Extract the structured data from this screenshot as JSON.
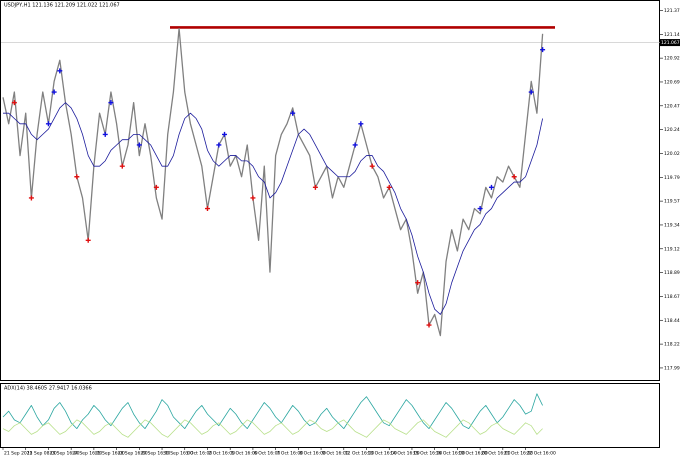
{
  "chart_data": [
    {
      "type": "line",
      "title": "USDJPY,H1 121.136 121.209 121.022 121.067",
      "categories": [
        "21 Sep 2015",
        null,
        null,
        null,
        "22 Sep 08:00",
        null,
        null,
        null,
        "23 Sep 16:00",
        null,
        null,
        null,
        "24 Sep 16:00",
        null,
        null,
        null,
        "25 Sep 16:00",
        null,
        null,
        null,
        "28 Sep 16:00",
        null,
        null,
        null,
        "29 Sep 16:00",
        null,
        null,
        null,
        "30 Sep 16:00",
        null,
        null,
        null,
        "1 Oct 16:00",
        null,
        null,
        null,
        "2 Oct 16:00",
        null,
        null,
        null,
        "5 Oct 16:00",
        null,
        null,
        null,
        "6 Oct 16:00",
        null,
        null,
        null,
        "7 Oct 16:00",
        null,
        null,
        null,
        "8 Oct 16:00",
        null,
        null,
        null,
        "9 Oct 16:00",
        null,
        null,
        null,
        "12 Oct 16:00",
        null,
        null,
        null,
        "13 Oct 16:00",
        null,
        null,
        null,
        "14 Oct 16:00",
        null,
        null,
        null,
        "15 Oct 16:00",
        null,
        null,
        null,
        "16 Oct 16:00",
        null,
        null,
        null,
        "19 Oct 16:00",
        null,
        null,
        null,
        "20 Oct 16:00",
        null,
        null,
        null,
        "21 Oct 16:00",
        null,
        null,
        null,
        "22 Oct 16:00",
        null,
        null,
        null
      ],
      "series": [
        {
          "color": "#808080",
          "values": [
            120.55,
            120.3,
            120.6,
            120.0,
            120.4,
            119.6,
            120.2,
            120.6,
            120.3,
            120.7,
            120.9,
            120.5,
            120.2,
            119.8,
            119.6,
            119.2,
            119.9,
            120.4,
            120.2,
            120.6,
            120.3,
            119.9,
            120.1,
            120.5,
            120.0,
            120.3,
            120.0,
            119.6,
            119.4,
            120.2,
            120.6,
            121.2,
            120.6,
            120.3,
            120.1,
            119.9,
            119.5,
            119.8,
            120.1,
            120.2,
            119.9,
            120.0,
            119.8,
            120.1,
            119.6,
            119.2,
            119.9,
            118.9,
            120.0,
            120.2,
            120.3,
            120.45,
            120.2,
            120.1,
            120.0,
            119.7,
            119.8,
            119.9,
            119.6,
            119.8,
            119.7,
            119.9,
            120.1,
            120.3,
            120.1,
            119.9,
            119.8,
            119.6,
            119.7,
            119.5,
            119.3,
            119.4,
            119.1,
            118.7,
            118.9,
            118.4,
            118.5,
            118.3,
            119.0,
            119.3,
            119.1,
            119.4,
            119.3,
            119.5,
            119.45,
            119.7,
            119.6,
            119.8,
            119.75,
            119.9,
            119.8,
            119.7,
            120.2,
            120.7,
            120.4,
            121.15
          ]
        },
        {
          "color": "#1c1c9c",
          "values": [
            120.4,
            120.4,
            120.35,
            120.3,
            120.3,
            120.2,
            120.15,
            120.2,
            120.25,
            120.35,
            120.45,
            120.5,
            120.45,
            120.35,
            120.2,
            120.0,
            119.9,
            119.9,
            119.95,
            120.05,
            120.1,
            120.15,
            120.15,
            120.2,
            120.2,
            120.15,
            120.1,
            120.0,
            119.9,
            119.9,
            120.0,
            120.2,
            120.35,
            120.4,
            120.35,
            120.25,
            120.05,
            119.95,
            119.9,
            119.95,
            120.0,
            120.0,
            119.95,
            119.95,
            119.9,
            119.8,
            119.75,
            119.6,
            119.65,
            119.75,
            119.9,
            120.05,
            120.2,
            120.25,
            120.2,
            120.1,
            120.0,
            119.9,
            119.85,
            119.8,
            119.8,
            119.8,
            119.85,
            119.95,
            120.0,
            120.0,
            119.9,
            119.85,
            119.75,
            119.65,
            119.5,
            119.4,
            119.25,
            119.05,
            118.9,
            118.7,
            118.55,
            118.5,
            118.6,
            118.8,
            118.95,
            119.1,
            119.2,
            119.3,
            119.35,
            119.45,
            119.5,
            119.6,
            119.65,
            119.7,
            119.75,
            119.75,
            119.8,
            119.95,
            120.1,
            120.35
          ]
        }
      ],
      "markers": [
        {
          "color": "#e01010",
          "values": [
            null,
            null,
            120.5,
            null,
            null,
            119.6,
            null,
            null,
            null,
            null,
            null,
            null,
            null,
            119.8,
            null,
            119.2,
            null,
            null,
            null,
            null,
            null,
            119.9,
            null,
            null,
            null,
            null,
            null,
            119.7,
            null,
            null,
            null,
            null,
            null,
            null,
            null,
            null,
            119.5,
            null,
            null,
            null,
            null,
            null,
            null,
            null,
            119.6,
            null,
            null,
            null,
            null,
            null,
            null,
            null,
            null,
            null,
            null,
            119.7,
            null,
            null,
            null,
            null,
            null,
            null,
            null,
            null,
            null,
            119.9,
            null,
            null,
            119.7,
            null,
            null,
            null,
            null,
            118.8,
            null,
            118.4,
            null,
            null,
            null,
            null,
            null,
            null,
            null,
            null,
            null,
            null,
            null,
            null,
            null,
            null,
            119.8,
            null,
            null,
            null,
            null,
            null
          ]
        },
        {
          "color": "#1010e0",
          "values": [
            null,
            null,
            null,
            null,
            null,
            null,
            null,
            null,
            120.3,
            120.6,
            120.8,
            null,
            null,
            null,
            null,
            null,
            null,
            null,
            120.2,
            120.5,
            null,
            null,
            null,
            null,
            120.1,
            null,
            null,
            null,
            null,
            null,
            null,
            null,
            null,
            null,
            null,
            null,
            null,
            null,
            120.1,
            120.2,
            null,
            null,
            null,
            null,
            null,
            null,
            null,
            null,
            null,
            null,
            null,
            120.4,
            null,
            null,
            null,
            null,
            null,
            null,
            null,
            null,
            null,
            null,
            120.1,
            120.3,
            null,
            null,
            null,
            null,
            null,
            null,
            null,
            null,
            null,
            null,
            null,
            null,
            null,
            null,
            null,
            null,
            null,
            null,
            null,
            null,
            119.5,
            null,
            119.7,
            null,
            null,
            null,
            null,
            null,
            null,
            120.6,
            null,
            121.0
          ]
        }
      ],
      "level": {
        "value": 121.21,
        "color": "#b00000"
      },
      "current": 121.067,
      "ylim": [
        117.9,
        121.45
      ],
      "yticks": [
        117.995,
        {
          "value": 118.22,
          "label": "118.220"
        },
        118.445,
        {
          "value": 118.67,
          "label": "118.670"
        },
        118.895,
        {
          "value": 119.12,
          "label": "119.120"
        },
        119.345,
        {
          "value": 119.57,
          "label": "119.570"
        },
        119.795,
        {
          "value": 120.02,
          "label": "120.020"
        },
        120.245,
        {
          "value": 120.47,
          "label": "120.470"
        },
        120.695,
        {
          "value": 120.92,
          "label": "120.920"
        },
        121.145,
        {
          "value": 121.37,
          "label": "121.370"
        }
      ]
    },
    {
      "type": "line",
      "title": "ADX(14) 38.4605 27.9417 16.0366",
      "ylim": [
        0,
        100
      ],
      "series": [
        {
          "color": "#2aa6a0",
          "values": [
            50,
            60,
            45,
            40,
            55,
            70,
            50,
            35,
            45,
            65,
            75,
            60,
            40,
            30,
            45,
            55,
            70,
            60,
            45,
            35,
            50,
            65,
            75,
            55,
            40,
            30,
            45,
            60,
            80,
            70,
            50,
            40,
            30,
            45,
            60,
            70,
            55,
            45,
            35,
            50,
            65,
            55,
            40,
            30,
            45,
            60,
            75,
            65,
            50,
            40,
            55,
            70,
            60,
            45,
            35,
            40,
            55,
            65,
            50,
            40,
            30,
            45,
            60,
            75,
            85,
            70,
            55,
            40,
            35,
            50,
            65,
            80,
            70,
            55,
            40,
            30,
            45,
            60,
            75,
            65,
            50,
            35,
            30,
            45,
            60,
            70,
            55,
            40,
            50,
            65,
            80,
            70,
            55,
            60,
            90,
            70
          ]
        },
        {
          "color": "#b8e08a",
          "values": [
            30,
            25,
            35,
            40,
            30,
            20,
            25,
            35,
            40,
            30,
            20,
            25,
            35,
            45,
            40,
            30,
            20,
            25,
            35,
            40,
            30,
            20,
            15,
            25,
            35,
            45,
            40,
            30,
            20,
            15,
            25,
            35,
            45,
            40,
            30,
            20,
            25,
            35,
            40,
            30,
            20,
            25,
            35,
            45,
            40,
            30,
            20,
            25,
            35,
            40,
            30,
            20,
            25,
            35,
            45,
            40,
            30,
            25,
            30,
            40,
            45,
            35,
            25,
            20,
            15,
            25,
            35,
            45,
            40,
            30,
            25,
            20,
            30,
            40,
            45,
            35,
            25,
            20,
            15,
            25,
            35,
            45,
            40,
            30,
            20,
            25,
            35,
            40,
            30,
            25,
            20,
            30,
            40,
            35,
            20,
            30
          ]
        }
      ]
    }
  ]
}
